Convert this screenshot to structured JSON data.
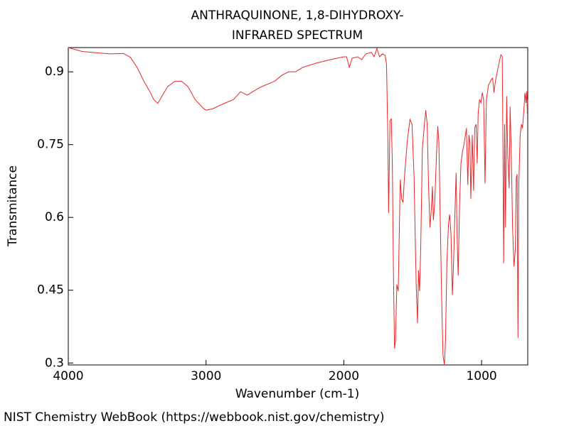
{
  "chart_data": {
    "type": "line",
    "title": "ANTHRAQUINONE, 1,8-DIHYDROXY-",
    "subtitle": "INFRARED SPECTRUM",
    "x_label": "Wavenumber (cm-1)",
    "y_label": "Transmitance",
    "source": "NIST Chemistry WebBook (https://webbook.nist.gov/chemistry)",
    "xlim": [
      4000,
      665
    ],
    "ylim": [
      0.296,
      0.95
    ],
    "xticks": [
      4000,
      3000,
      2000,
      1000
    ],
    "yticks": [
      0.3,
      0.45,
      0.6,
      0.75,
      0.9
    ],
    "grid": false,
    "series": [
      {
        "color": "#e8272a",
        "x": [
          4000,
          3900,
          3700,
          3600,
          3550,
          3500,
          3450,
          3400,
          3380,
          3350,
          3320,
          3280,
          3230,
          3180,
          3130,
          3080,
          3020,
          3000,
          2950,
          2900,
          2850,
          2800,
          2750,
          2700,
          2650,
          2600,
          2500,
          2450,
          2400,
          2350,
          2300,
          2200,
          2100,
          2050,
          2000,
          1980,
          1960,
          1940,
          1900,
          1870,
          1840,
          1800,
          1780,
          1760,
          1740,
          1720,
          1700,
          1690,
          1680,
          1675,
          1665,
          1655,
          1648,
          1640,
          1632,
          1625,
          1615,
          1605,
          1595,
          1590,
          1580,
          1570,
          1560,
          1540,
          1520,
          1505,
          1490,
          1475,
          1465,
          1458,
          1450,
          1442,
          1430,
          1415,
          1405,
          1395,
          1385,
          1375,
          1365,
          1357,
          1350,
          1340,
          1328,
          1318,
          1310,
          1300,
          1290,
          1280,
          1270,
          1262,
          1252,
          1240,
          1232,
          1222,
          1212,
          1205,
          1195,
          1185,
          1178,
          1170,
          1160,
          1150,
          1140,
          1125,
          1110,
          1100,
          1092,
          1085,
          1078,
          1068,
          1058,
          1050,
          1040,
          1032,
          1025,
          1015,
          1005,
          995,
          985,
          975,
          965,
          950,
          930,
          920,
          910,
          900,
          880,
          860,
          850,
          845,
          840,
          833,
          826,
          818,
          810,
          800,
          793,
          785,
          775,
          765,
          755,
          748,
          742,
          736,
          730,
          720,
          710,
          703,
          695,
          685,
          678,
          672,
          668,
          665
        ],
        "values": [
          0.95,
          0.942,
          0.937,
          0.938,
          0.93,
          0.909,
          0.88,
          0.855,
          0.843,
          0.835,
          0.85,
          0.869,
          0.88,
          0.881,
          0.869,
          0.843,
          0.825,
          0.821,
          0.824,
          0.831,
          0.837,
          0.843,
          0.859,
          0.852,
          0.861,
          0.869,
          0.881,
          0.893,
          0.9,
          0.9,
          0.909,
          0.918,
          0.925,
          0.928,
          0.931,
          0.931,
          0.909,
          0.928,
          0.931,
          0.925,
          0.937,
          0.94,
          0.931,
          0.948,
          0.931,
          0.937,
          0.934,
          0.916,
          0.755,
          0.609,
          0.8,
          0.803,
          0.711,
          0.49,
          0.33,
          0.345,
          0.462,
          0.448,
          0.609,
          0.678,
          0.638,
          0.631,
          0.683,
          0.755,
          0.802,
          0.792,
          0.683,
          0.462,
          0.382,
          0.491,
          0.448,
          0.535,
          0.74,
          0.792,
          0.821,
          0.792,
          0.667,
          0.579,
          0.616,
          0.664,
          0.594,
          0.631,
          0.726,
          0.788,
          0.755,
          0.594,
          0.433,
          0.316,
          0.296,
          0.345,
          0.506,
          0.587,
          0.606,
          0.565,
          0.44,
          0.491,
          0.594,
          0.692,
          0.565,
          0.48,
          0.623,
          0.711,
          0.733,
          0.755,
          0.784,
          0.667,
          0.77,
          0.755,
          0.638,
          0.77,
          0.655,
          0.784,
          0.792,
          0.711,
          0.814,
          0.843,
          0.836,
          0.857,
          0.843,
          0.67,
          0.843,
          0.872,
          0.884,
          0.887,
          0.857,
          0.88,
          0.909,
          0.935,
          0.931,
          0.755,
          0.506,
          0.792,
          0.579,
          0.85,
          0.726,
          0.66,
          0.828,
          0.74,
          0.579,
          0.499,
          0.535,
          0.682,
          0.689,
          0.352,
          0.667,
          0.77,
          0.792,
          0.784,
          0.814,
          0.857,
          0.836,
          0.86,
          0.814,
          0.843
        ]
      }
    ]
  }
}
